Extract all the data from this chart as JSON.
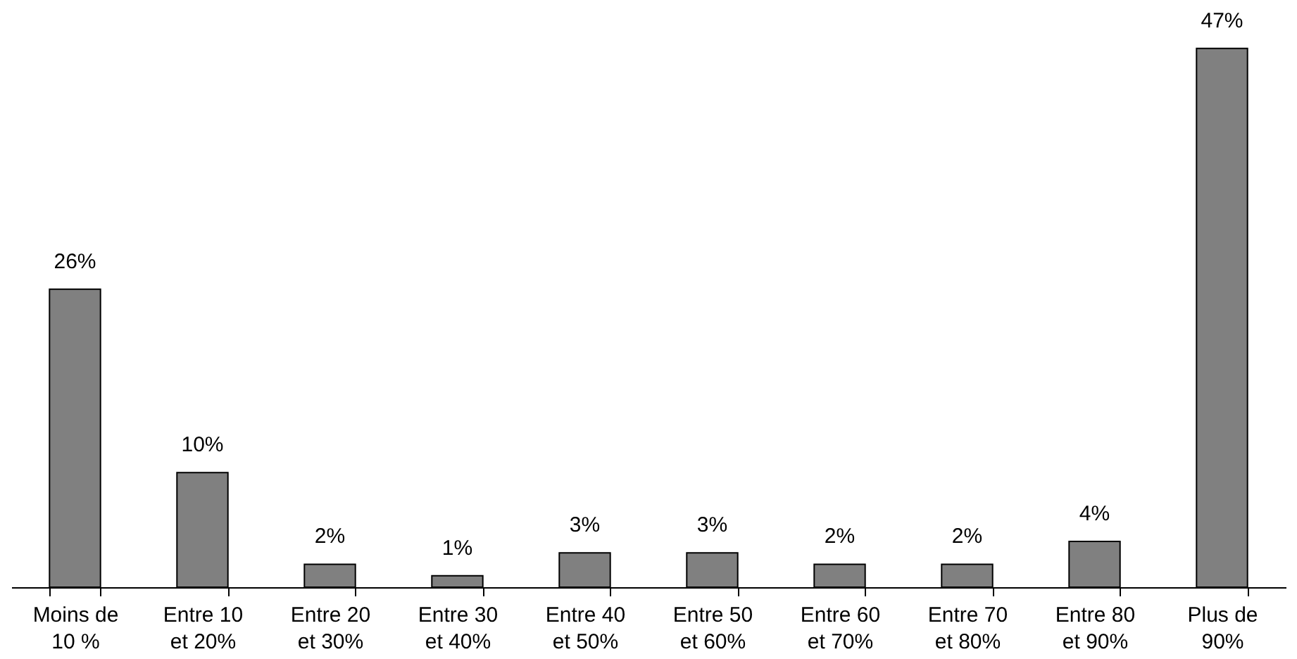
{
  "chart_data": {
    "type": "bar",
    "categories": [
      "Moins de 10 %",
      "Entre 10 et 20%",
      "Entre 20 et 30%",
      "Entre 30 et 40%",
      "Entre 40 et 50%",
      "Entre 50 et 60%",
      "Entre 60 et 70%",
      "Entre 70 et 80%",
      "Entre 80 et 90%",
      "Plus de 90%"
    ],
    "values": [
      26,
      10,
      2,
      1,
      3,
      3,
      2,
      2,
      4,
      47
    ],
    "value_labels": [
      "26%",
      "10%",
      "2%",
      "1%",
      "3%",
      "3%",
      "2%",
      "2%",
      "4%",
      "47%"
    ],
    "color": "#808080"
  }
}
